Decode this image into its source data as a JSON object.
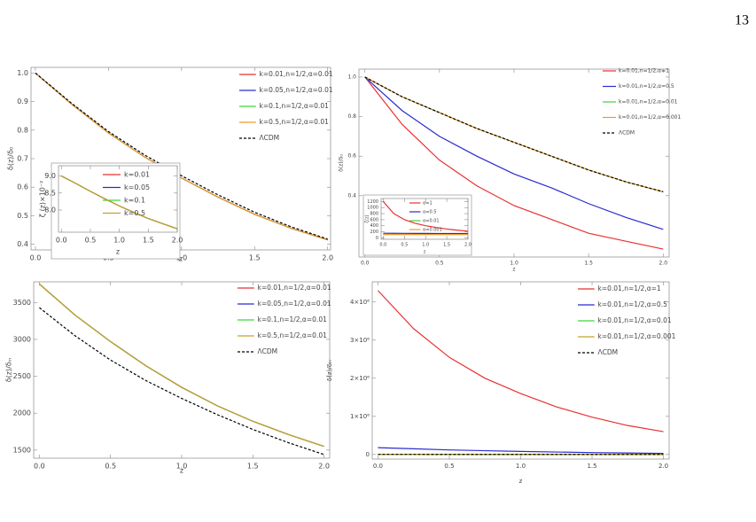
{
  "page_number": "13",
  "chart_data": [
    {
      "type": "line",
      "x_label": "z",
      "y_label": "δ(z)/δ₀",
      "legend": "upper right",
      "x": [
        0,
        0.25,
        0.5,
        0.75,
        1,
        1.25,
        1.5,
        1.75,
        2
      ],
      "xlim": [
        -0.03,
        2.02
      ],
      "ylim": [
        0.38,
        1.02
      ],
      "xticks": [
        {
          "value": 0,
          "label": "0.0"
        },
        0.5,
        {
          "value": 1,
          "label": "1.0"
        },
        1.5,
        {
          "value": 2,
          "label": "2.0"
        }
      ],
      "yticks": [
        0.4,
        0.5,
        0.6,
        0.7,
        0.8,
        0.9,
        {
          "value": 1,
          "label": "1.0"
        }
      ],
      "series": [
        {
          "name": "k=0.01,n=1/2,α=0.01",
          "color": "#e8312f",
          "style": "solid",
          "values": [
            1,
            0.89,
            0.79,
            0.705,
            0.632,
            0.565,
            0.505,
            0.456,
            0.415
          ]
        },
        {
          "name": "k=0.05,n=1/2,α=0.01",
          "color": "#2b2bd0",
          "style": "solid",
          "values": [
            1,
            0.89,
            0.79,
            0.705,
            0.632,
            0.565,
            0.505,
            0.456,
            0.415
          ]
        },
        {
          "name": "k=0.1,n=1/2,α=0.01",
          "color": "#3ad63a",
          "style": "solid",
          "values": [
            1,
            0.89,
            0.79,
            0.705,
            0.632,
            0.565,
            0.505,
            0.456,
            0.415
          ]
        },
        {
          "name": "k=0.5,n=1/2,α=0.01",
          "color": "#f5962b",
          "style": "solid",
          "values": [
            1,
            0.89,
            0.79,
            0.705,
            0.632,
            0.565,
            0.505,
            0.456,
            0.415
          ]
        },
        {
          "name": "ΛCDM",
          "color": "#000000",
          "style": "dashed",
          "values": [
            1,
            0.893,
            0.795,
            0.712,
            0.64,
            0.573,
            0.512,
            0.461,
            0.418
          ]
        }
      ],
      "inset": {
        "type": "line",
        "x_label": "z",
        "y_label": "ζ (z)×10⁻²",
        "legend": "upper right",
        "x": [
          0,
          0.25,
          0.5,
          0.75,
          1,
          1.25,
          1.5,
          1.75,
          2
        ],
        "xlim": [
          -0.05,
          2.0
        ],
        "ylim": [
          7.35,
          9.3
        ],
        "xticks": [
          {
            "value": 0,
            "label": "0.0"
          },
          0.5,
          {
            "value": 1,
            "label": "1.0"
          },
          1.5,
          {
            "value": 2,
            "label": "2.0"
          }
        ],
        "yticks": [
          {
            "value": 8,
            "label": "8.0"
          },
          8.5,
          {
            "value": 9,
            "label": "9.0"
          }
        ],
        "series": [
          {
            "name": "k=0.01",
            "color": "#e8312f",
            "style": "solid",
            "values": [
              9.0,
              8.78,
              8.55,
              8.33,
              8.12,
              7.93,
              7.75,
              7.6,
              7.45
            ]
          },
          {
            "name": "k=0.05",
            "color": "#2b2bd0",
            "style": "solid",
            "values": [
              9.0,
              8.78,
              8.55,
              8.33,
              8.12,
              7.93,
              7.75,
              7.6,
              7.45
            ]
          },
          {
            "name": "k=0.1",
            "color": "#3ad63a",
            "style": "solid",
            "values": [
              9.0,
              8.78,
              8.55,
              8.33,
              8.12,
              7.93,
              7.75,
              7.6,
              7.45
            ]
          },
          {
            "name": "k=0.5",
            "color": "#c8a02a",
            "style": "solid",
            "values": [
              9.0,
              8.78,
              8.55,
              8.33,
              8.12,
              7.93,
              7.75,
              7.6,
              7.45
            ]
          }
        ]
      }
    },
    {
      "type": "line",
      "x_label": "z",
      "y_label": "δ(z)/δ₀",
      "legend": "upper right",
      "x": [
        0,
        0.25,
        0.5,
        0.75,
        1,
        1.25,
        1.5,
        1.75,
        2
      ],
      "xlim": [
        -0.04,
        2.04
      ],
      "ylim": [
        0.09,
        1.04
      ],
      "xticks": [
        {
          "value": 0,
          "label": "0.0"
        },
        0.5,
        {
          "value": 1,
          "label": "1.0"
        },
        1.5,
        {
          "value": 2,
          "label": "2.0"
        }
      ],
      "yticks": [
        0.4,
        0.6,
        0.8,
        {
          "value": 1,
          "label": "1.0"
        }
      ],
      "series": [
        {
          "name": "k=0.01,n=1/2,α=1",
          "color": "#e8312f",
          "style": "solid",
          "values": [
            1,
            0.76,
            0.58,
            0.45,
            0.35,
            0.28,
            0.21,
            0.17,
            0.13
          ]
        },
        {
          "name": "k=0.01,n=1/2,α=0.5",
          "color": "#2b2bd0",
          "style": "solid",
          "values": [
            1,
            0.83,
            0.7,
            0.6,
            0.51,
            0.44,
            0.36,
            0.29,
            0.23
          ]
        },
        {
          "name": "k=0.01,n=1/2,α=0.01",
          "color": "#3ad63a",
          "style": "solid",
          "values": [
            1,
            0.9,
            0.82,
            0.74,
            0.67,
            0.6,
            0.53,
            0.47,
            0.42
          ]
        },
        {
          "name": "k=0.01,n=1/2,α=0.001",
          "color": "#f5962b",
          "style": "solid",
          "values": [
            1,
            0.9,
            0.82,
            0.74,
            0.67,
            0.6,
            0.53,
            0.47,
            0.42
          ]
        },
        {
          "name": "ΛCDM",
          "color": "#000000",
          "style": "dashed",
          "values": [
            1,
            0.9,
            0.82,
            0.74,
            0.67,
            0.6,
            0.53,
            0.47,
            0.42
          ]
        }
      ],
      "inset": {
        "type": "line",
        "x_label": "z",
        "y_label": "ζ(z)",
        "legend": "upper right",
        "x": [
          0,
          0.25,
          0.5,
          0.75,
          1,
          1.25,
          1.5,
          1.75,
          2
        ],
        "xlim": [
          -0.05,
          2.0
        ],
        "ylim": [
          -50,
          1300
        ],
        "xticks": [
          {
            "value": 0,
            "label": "0.0"
          },
          0.5,
          {
            "value": 1,
            "label": "1.0"
          },
          1.5,
          {
            "value": 2,
            "label": "2.0"
          }
        ],
        "yticks": [
          0,
          200,
          400,
          600,
          800,
          1000,
          1200
        ],
        "series": [
          {
            "name": "α=1",
            "color": "#e8312f",
            "style": "solid",
            "values": [
              1200,
              800,
              600,
              480,
              400,
              340,
              290,
              250,
              220
            ]
          },
          {
            "name": "α=0.5",
            "color": "#2b2bd0",
            "style": "solid",
            "values": [
              150,
              148,
              146,
              145,
              144,
              143,
              142,
              141,
              140
            ]
          },
          {
            "name": "α=0.01",
            "color": "#3ad63a",
            "style": "solid",
            "values": [
              110,
              110,
              110,
              110,
              110,
              110,
              110,
              110,
              110
            ]
          },
          {
            "name": "α=0.001",
            "color": "#f5962b",
            "style": "solid",
            "values": [
              110,
              110,
              110,
              110,
              110,
              110,
              110,
              110,
              110
            ]
          }
        ]
      }
    },
    {
      "type": "line",
      "x_label": "z",
      "y_label": "δ(z)/δᵢₙ",
      "legend": "upper right",
      "x": [
        0,
        0.25,
        0.5,
        0.75,
        1,
        1.25,
        1.5,
        1.75,
        2
      ],
      "xlim": [
        -0.04,
        2.04
      ],
      "ylim": [
        1390,
        3780
      ],
      "xticks": [
        {
          "value": 0,
          "label": "0.0"
        },
        0.5,
        {
          "value": 1,
          "label": "1.0"
        },
        1.5,
        {
          "value": 2,
          "label": "2.0"
        }
      ],
      "yticks": [
        1500,
        2000,
        2500,
        3000,
        3500
      ],
      "series": [
        {
          "name": "k=0.01,n=1/2,α=0.01",
          "color": "#e8312f",
          "style": "solid",
          "values": [
            3750,
            3330,
            2970,
            2640,
            2350,
            2100,
            1890,
            1710,
            1550
          ]
        },
        {
          "name": "k=0.05,n=1/2,α=0.01",
          "color": "#2b2bd0",
          "style": "solid",
          "values": [
            3750,
            3330,
            2970,
            2640,
            2350,
            2100,
            1890,
            1710,
            1550
          ]
        },
        {
          "name": "k=0.1,n=1/2,α=0.01",
          "color": "#3ad63a",
          "style": "solid",
          "values": [
            3750,
            3330,
            2970,
            2640,
            2350,
            2100,
            1890,
            1710,
            1550
          ]
        },
        {
          "name": "k=0.5,n=1/2,α=0.01",
          "color": "#c8a02a",
          "style": "solid",
          "values": [
            3750,
            3330,
            2970,
            2640,
            2350,
            2100,
            1890,
            1710,
            1550
          ]
        },
        {
          "name": "ΛCDM",
          "color": "#000000",
          "style": "dashed",
          "values": [
            3430,
            3050,
            2720,
            2440,
            2200,
            1980,
            1780,
            1600,
            1440
          ]
        }
      ]
    },
    {
      "type": "line",
      "x_label": "z",
      "y_label": "δ(z)/δᵢₙ",
      "legend": "upper right",
      "x": [
        0,
        0.25,
        0.5,
        0.75,
        1,
        1.25,
        1.5,
        1.75,
        2
      ],
      "xlim": [
        -0.04,
        2.04
      ],
      "ylim": [
        -120000,
        4530000
      ],
      "xticks": [
        {
          "value": 0,
          "label": "0.0"
        },
        0.5,
        {
          "value": 1,
          "label": "1.0"
        },
        1.5,
        {
          "value": 2,
          "label": "2.0"
        }
      ],
      "yticks": [
        0,
        {
          "value": 1000000,
          "label": "1×10⁶"
        },
        {
          "value": 2000000,
          "label": "2×10⁶"
        },
        {
          "value": 3000000,
          "label": "3×10⁶"
        },
        {
          "value": 4000000,
          "label": "4×10⁶"
        }
      ],
      "series": [
        {
          "name": "k=0.01,n=1/2,α=1",
          "color": "#e8312f",
          "style": "solid",
          "values": [
            4300000,
            3300000,
            2550000,
            2000000,
            1600000,
            1250000,
            980000,
            760000,
            600000
          ]
        },
        {
          "name": "k=0.01,n=1/2,α=0.5",
          "color": "#2b2bd0",
          "style": "solid",
          "values": [
            180000,
            150000,
            120000,
            100000,
            80000,
            65000,
            50000,
            40000,
            30000
          ]
        },
        {
          "name": "k=0.01,n=1/2,α=0.01",
          "color": "#3ad63a",
          "style": "solid",
          "values": [
            3750,
            3330,
            2970,
            2640,
            2350,
            2100,
            1890,
            1710,
            1550
          ]
        },
        {
          "name": "k=0.01,n=1/2,α=0.001",
          "color": "#c8a02a",
          "style": "solid",
          "values": [
            3750,
            3330,
            2970,
            2640,
            2350,
            2100,
            1890,
            1710,
            1550
          ]
        },
        {
          "name": "ΛCDM",
          "color": "#000000",
          "style": "dashed",
          "values": [
            3430,
            3050,
            2720,
            2440,
            2200,
            1980,
            1780,
            1600,
            1440
          ]
        }
      ]
    }
  ]
}
